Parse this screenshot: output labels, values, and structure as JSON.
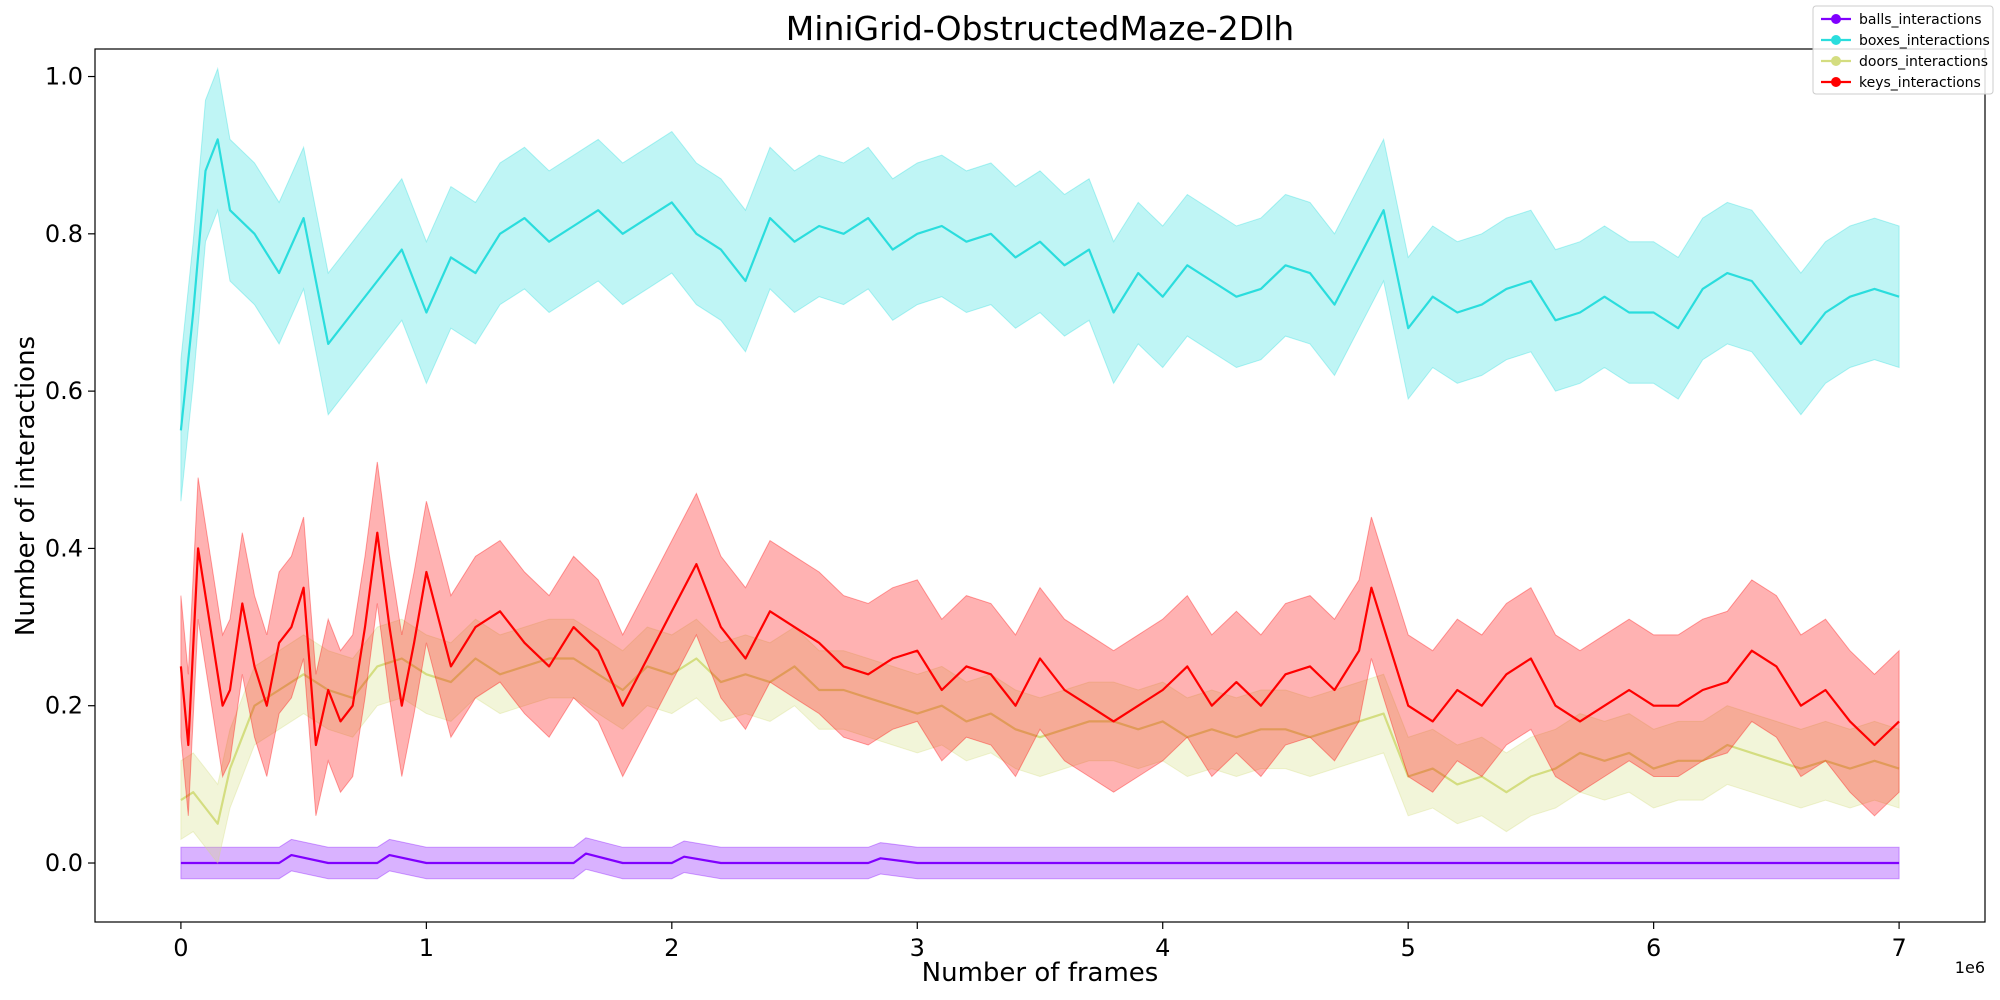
{
  "chart_data": {
    "type": "line",
    "title": "MiniGrid-ObstructedMaze-2Dlh",
    "xlabel": "Number of frames",
    "ylabel": "Number of interactions",
    "x_offset_label": "1e6",
    "xlim": [
      -0.35,
      7.35
    ],
    "ylim": [
      -0.075,
      1.035
    ],
    "xticks": [
      0,
      1,
      2,
      3,
      4,
      5,
      6,
      7
    ],
    "yticks": [
      0.0,
      0.2,
      0.4,
      0.6,
      0.8,
      1.0
    ],
    "ytick_labels": [
      "0.0",
      "0.2",
      "0.4",
      "0.6",
      "0.8",
      "1.0"
    ],
    "grid": false,
    "legend_position": "top-right",
    "series": [
      {
        "name": "balls_interactions",
        "color": "#8000ff",
        "x": [
          0,
          0.2,
          0.4,
          0.45,
          0.6,
          0.8,
          0.85,
          1.0,
          1.2,
          1.4,
          1.6,
          1.65,
          1.8,
          2.0,
          2.05,
          2.2,
          2.4,
          2.6,
          2.8,
          2.85,
          3.0,
          3.2,
          3.4,
          3.6,
          3.8,
          4.0,
          4.2,
          4.4,
          4.6,
          4.8,
          5.0,
          5.2,
          5.4,
          5.6,
          5.8,
          6.0,
          6.2,
          6.4,
          6.6,
          6.8,
          7.0
        ],
        "y": [
          0.0,
          0.0,
          0.0,
          0.01,
          0.0,
          0.0,
          0.01,
          0.0,
          0.0,
          0.0,
          0.0,
          0.012,
          0.0,
          0.0,
          0.008,
          0.0,
          0.0,
          0.0,
          0.0,
          0.006,
          0.0,
          0.0,
          0.0,
          0.0,
          0.0,
          0.0,
          0.0,
          0.0,
          0.0,
          0.0,
          0.0,
          0.0,
          0.0,
          0.0,
          0.0,
          0.0,
          0.0,
          0.0,
          0.0,
          0.0,
          0.0
        ],
        "band": 0.02
      },
      {
        "name": "boxes_interactions",
        "color": "#2adddd",
        "x": [
          0,
          0.05,
          0.1,
          0.15,
          0.2,
          0.3,
          0.4,
          0.5,
          0.6,
          0.7,
          0.8,
          0.9,
          1.0,
          1.1,
          1.2,
          1.3,
          1.4,
          1.5,
          1.6,
          1.7,
          1.8,
          1.9,
          2.0,
          2.1,
          2.2,
          2.3,
          2.4,
          2.5,
          2.6,
          2.7,
          2.8,
          2.9,
          3.0,
          3.1,
          3.2,
          3.3,
          3.4,
          3.5,
          3.6,
          3.7,
          3.8,
          3.9,
          4.0,
          4.1,
          4.2,
          4.3,
          4.4,
          4.5,
          4.6,
          4.7,
          4.8,
          4.9,
          5.0,
          5.1,
          5.2,
          5.3,
          5.4,
          5.5,
          5.6,
          5.7,
          5.8,
          5.9,
          6.0,
          6.1,
          6.2,
          6.3,
          6.4,
          6.5,
          6.6,
          6.7,
          6.8,
          6.9,
          7.0
        ],
        "y": [
          0.55,
          0.7,
          0.88,
          0.92,
          0.83,
          0.8,
          0.75,
          0.82,
          0.66,
          0.7,
          0.74,
          0.78,
          0.7,
          0.77,
          0.75,
          0.8,
          0.82,
          0.79,
          0.81,
          0.83,
          0.8,
          0.82,
          0.84,
          0.8,
          0.78,
          0.74,
          0.82,
          0.79,
          0.81,
          0.8,
          0.82,
          0.78,
          0.8,
          0.81,
          0.79,
          0.8,
          0.77,
          0.79,
          0.76,
          0.78,
          0.7,
          0.75,
          0.72,
          0.76,
          0.74,
          0.72,
          0.73,
          0.76,
          0.75,
          0.71,
          0.77,
          0.83,
          0.68,
          0.72,
          0.7,
          0.71,
          0.73,
          0.74,
          0.69,
          0.7,
          0.72,
          0.7,
          0.7,
          0.68,
          0.73,
          0.75,
          0.74,
          0.7,
          0.66,
          0.7,
          0.72,
          0.73,
          0.72
        ],
        "band": 0.09
      },
      {
        "name": "doors_interactions",
        "color": "#d4dd80",
        "x": [
          0,
          0.05,
          0.1,
          0.15,
          0.2,
          0.3,
          0.4,
          0.5,
          0.6,
          0.7,
          0.8,
          0.9,
          1.0,
          1.1,
          1.2,
          1.3,
          1.4,
          1.5,
          1.6,
          1.7,
          1.8,
          1.9,
          2.0,
          2.1,
          2.2,
          2.3,
          2.4,
          2.5,
          2.6,
          2.7,
          2.8,
          2.9,
          3.0,
          3.1,
          3.2,
          3.3,
          3.4,
          3.5,
          3.6,
          3.7,
          3.8,
          3.9,
          4.0,
          4.1,
          4.2,
          4.3,
          4.4,
          4.5,
          4.6,
          4.7,
          4.8,
          4.9,
          5.0,
          5.1,
          5.2,
          5.3,
          5.4,
          5.5,
          5.6,
          5.7,
          5.8,
          5.9,
          6.0,
          6.1,
          6.2,
          6.3,
          6.4,
          6.5,
          6.6,
          6.7,
          6.8,
          6.9,
          7.0
        ],
        "y": [
          0.08,
          0.09,
          0.07,
          0.05,
          0.12,
          0.2,
          0.22,
          0.24,
          0.22,
          0.21,
          0.25,
          0.26,
          0.24,
          0.23,
          0.26,
          0.24,
          0.25,
          0.26,
          0.26,
          0.24,
          0.22,
          0.25,
          0.24,
          0.26,
          0.23,
          0.24,
          0.23,
          0.25,
          0.22,
          0.22,
          0.21,
          0.2,
          0.19,
          0.2,
          0.18,
          0.19,
          0.17,
          0.16,
          0.17,
          0.18,
          0.18,
          0.17,
          0.18,
          0.16,
          0.17,
          0.16,
          0.17,
          0.17,
          0.16,
          0.17,
          0.18,
          0.19,
          0.11,
          0.12,
          0.1,
          0.11,
          0.09,
          0.11,
          0.12,
          0.14,
          0.13,
          0.14,
          0.12,
          0.13,
          0.13,
          0.15,
          0.14,
          0.13,
          0.12,
          0.13,
          0.12,
          0.13,
          0.12
        ],
        "band": 0.05
      },
      {
        "name": "keys_interactions",
        "color": "#ff0000",
        "x": [
          0,
          0.03,
          0.07,
          0.12,
          0.17,
          0.2,
          0.25,
          0.3,
          0.35,
          0.4,
          0.45,
          0.5,
          0.55,
          0.6,
          0.65,
          0.7,
          0.75,
          0.8,
          0.85,
          0.9,
          0.95,
          1.0,
          1.1,
          1.2,
          1.3,
          1.4,
          1.5,
          1.6,
          1.7,
          1.8,
          1.9,
          2.0,
          2.1,
          2.2,
          2.3,
          2.4,
          2.5,
          2.6,
          2.7,
          2.8,
          2.9,
          3.0,
          3.1,
          3.2,
          3.3,
          3.4,
          3.5,
          3.6,
          3.7,
          3.8,
          3.9,
          4.0,
          4.1,
          4.2,
          4.3,
          4.4,
          4.5,
          4.6,
          4.7,
          4.8,
          4.85,
          4.9,
          5.0,
          5.1,
          5.2,
          5.3,
          5.4,
          5.5,
          5.6,
          5.7,
          5.8,
          5.9,
          6.0,
          6.1,
          6.2,
          6.3,
          6.4,
          6.5,
          6.6,
          6.7,
          6.8,
          6.9,
          7.0
        ],
        "y": [
          0.25,
          0.15,
          0.4,
          0.3,
          0.2,
          0.22,
          0.33,
          0.25,
          0.2,
          0.28,
          0.3,
          0.35,
          0.15,
          0.22,
          0.18,
          0.2,
          0.3,
          0.42,
          0.3,
          0.2,
          0.28,
          0.37,
          0.25,
          0.3,
          0.32,
          0.28,
          0.25,
          0.3,
          0.27,
          0.2,
          0.26,
          0.32,
          0.38,
          0.3,
          0.26,
          0.32,
          0.3,
          0.28,
          0.25,
          0.24,
          0.26,
          0.27,
          0.22,
          0.25,
          0.24,
          0.2,
          0.26,
          0.22,
          0.2,
          0.18,
          0.2,
          0.22,
          0.25,
          0.2,
          0.23,
          0.2,
          0.24,
          0.25,
          0.22,
          0.27,
          0.35,
          0.3,
          0.2,
          0.18,
          0.22,
          0.2,
          0.24,
          0.26,
          0.2,
          0.18,
          0.2,
          0.22,
          0.2,
          0.2,
          0.22,
          0.23,
          0.27,
          0.25,
          0.2,
          0.22,
          0.18,
          0.15,
          0.18
        ],
        "band": 0.09
      }
    ]
  }
}
